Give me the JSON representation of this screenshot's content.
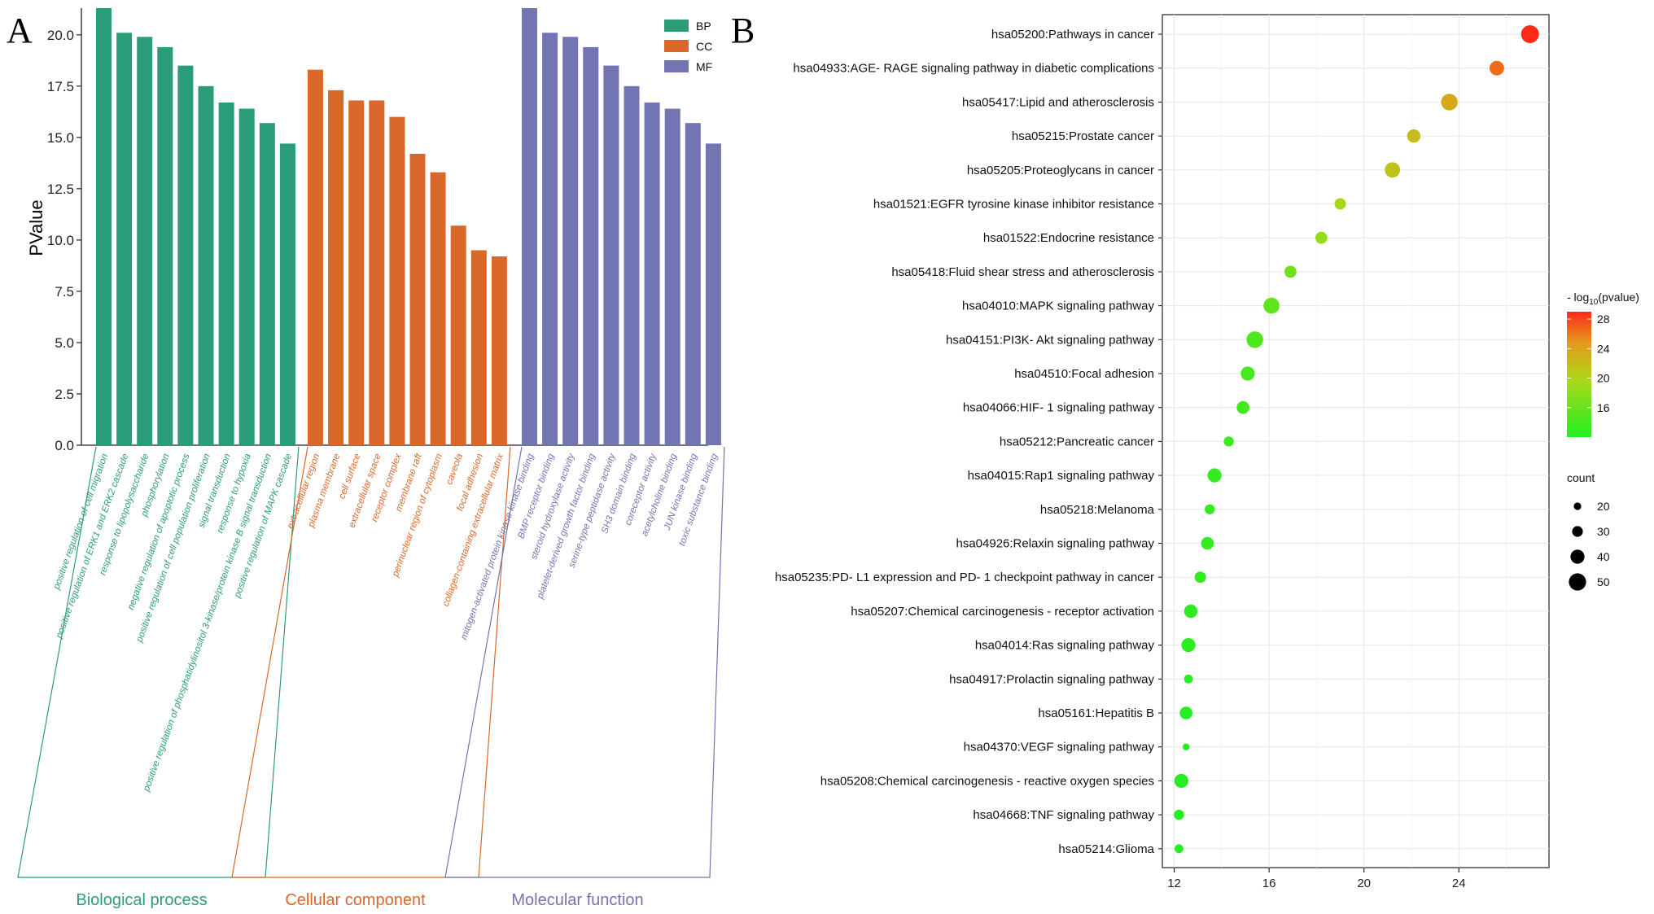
{
  "colors": {
    "BP": "#2b9c7a",
    "CC": "#d9682a",
    "MF": "#7274b3"
  },
  "chart_data": [
    {
      "panel_label": "A",
      "type": "bar",
      "ylabel": "PValue",
      "ylim": [
        0,
        21.3
      ],
      "yticks": [
        "0.0",
        "2.5",
        "5.0",
        "7.5",
        "10.0",
        "12.5",
        "15.0",
        "17.5",
        "20.0"
      ],
      "legend": [
        {
          "key": "BP",
          "label": "BP"
        },
        {
          "key": "CC",
          "label": "CC"
        },
        {
          "key": "MF",
          "label": "MF"
        }
      ],
      "groups": [
        {
          "key": "BP",
          "name": "Biological process",
          "categories": [
            "positive regulation of cell migration",
            "positive regulation of ERK1 and ERK2 cascade",
            "response to lipopolysaccharide",
            "phosphorylation",
            "negative regulation of apoptotic process",
            "positive regulation of cell population proliferation",
            "signal transduction",
            "response to hypoxia",
            "positive regulation of phosphatidylinositol 3-kinase/protein kinase B signal transduction",
            "positive regulation of MAPK cascade"
          ],
          "values": [
            21.5,
            20.1,
            19.9,
            19.4,
            18.5,
            17.5,
            16.7,
            16.4,
            15.7,
            14.7
          ]
        },
        {
          "key": "CC",
          "name": "Cellular component",
          "categories": [
            "extracellular region",
            "plasma membrane",
            "cell surface",
            "extracellular space",
            "receptor complex",
            "membrane raft",
            "perinuclear region of cytoplasm",
            "caveola",
            "focal adhesion",
            "collagen-containing extracellular matrix"
          ],
          "values": [
            18.3,
            17.3,
            16.8,
            16.8,
            16.0,
            14.2,
            13.3,
            10.7,
            9.5,
            9.2
          ]
        },
        {
          "key": "MF",
          "name": "Molecular function",
          "categories": [
            "mitogen-activated protein kinase kinase binding",
            "BMP receptor binding",
            "steroid hydroxylase activity",
            "platelet-derived growth factor binding",
            "serine-type peptidase activity",
            "SH3 domain binding",
            "coreceptor activity",
            "acetylcholine binding",
            "JUN kinase binding",
            "toxic substance binding"
          ],
          "values": [
            21.5,
            20.1,
            19.9,
            19.4,
            18.5,
            17.5,
            16.7,
            16.4,
            15.7,
            14.7
          ]
        }
      ]
    },
    {
      "panel_label": "B",
      "type": "scatter",
      "xlim": [
        11.5,
        27.8
      ],
      "xticks": [
        12,
        16,
        20,
        24
      ],
      "color_legend": {
        "title_prefix": "- log",
        "title_sub": "10",
        "title_suffix": "(pvalue)",
        "ticks": [
          28,
          24,
          20,
          16
        ],
        "range": [
          12,
          29
        ]
      },
      "size_legend": {
        "title": "count",
        "values": [
          20,
          30,
          40,
          50
        ]
      },
      "categories": [
        "hsa05200:Pathways in cancer",
        "hsa04933:AGE- RAGE signaling pathway in diabetic complications",
        "hsa05417:Lipid and atherosclerosis",
        "hsa05215:Prostate cancer",
        "hsa05205:Proteoglycans in cancer",
        "hsa01521:EGFR tyrosine kinase inhibitor resistance",
        "hsa01522:Endocrine resistance",
        "hsa05418:Fluid shear stress and atherosclerosis",
        "hsa04010:MAPK signaling pathway",
        "hsa04151:PI3K- Akt signaling pathway",
        "hsa04510:Focal adhesion",
        "hsa04066:HIF- 1 signaling pathway",
        "hsa05212:Pancreatic cancer",
        "hsa04015:Rap1 signaling pathway",
        "hsa05218:Melanoma",
        "hsa04926:Relaxin signaling pathway",
        "hsa05235:PD- L1 expression and PD- 1 checkpoint pathway in cancer",
        "hsa05207:Chemical carcinogenesis -  receptor activation",
        "hsa04014:Ras signaling pathway",
        "hsa04917:Prolactin signaling pathway",
        "hsa05161:Hepatitis B",
        "hsa04370:VEGF signaling pathway",
        "hsa05208:Chemical carcinogenesis -  reactive oxygen species",
        "hsa04668:TNF signaling pathway",
        "hsa05214:Glioma"
      ],
      "x": [
        27.0,
        25.6,
        23.6,
        22.1,
        21.2,
        19.0,
        18.2,
        16.9,
        16.1,
        15.4,
        15.1,
        14.9,
        14.3,
        13.7,
        13.5,
        13.4,
        13.1,
        12.7,
        12.6,
        12.6,
        12.5,
        12.5,
        12.3,
        12.2,
        12.2
      ],
      "count": [
        52,
        42,
        48,
        38,
        44,
        32,
        34,
        34,
        46,
        48,
        40,
        36,
        28,
        40,
        28,
        36,
        32,
        38,
        40,
        24,
        36,
        18,
        40,
        28,
        24
      ],
      "neglog10p": [
        29,
        26.5,
        23.5,
        22,
        21.5,
        19.5,
        18.5,
        16.5,
        15.5,
        14.5,
        14,
        13.8,
        13.5,
        13,
        13,
        13,
        12.8,
        12.5,
        12.5,
        12.3,
        12.2,
        12.2,
        12.1,
        12,
        12
      ]
    }
  ]
}
